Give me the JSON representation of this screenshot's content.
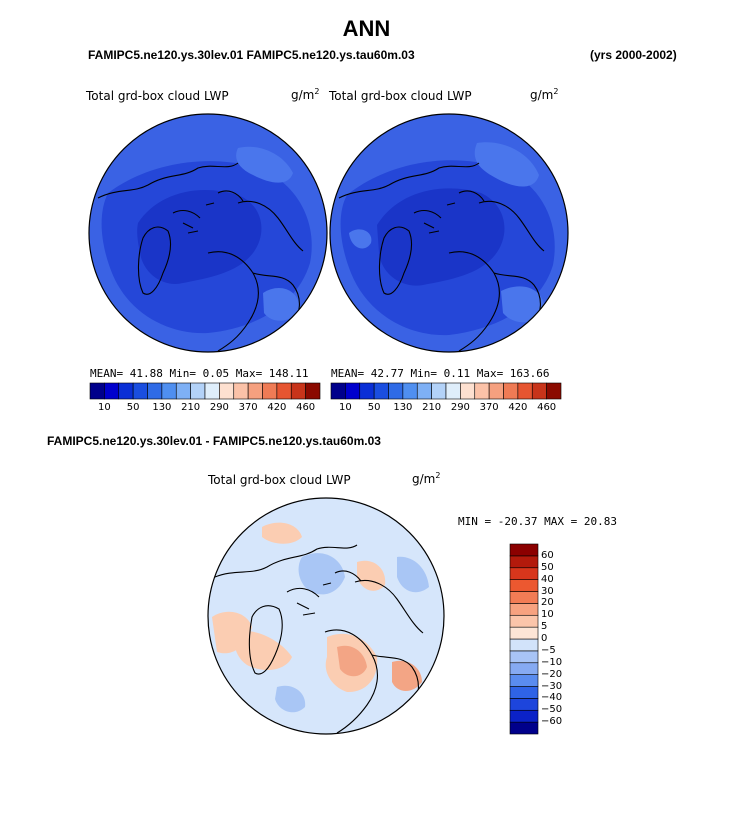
{
  "title": "ANN",
  "header": {
    "case_line": "FAMIPC5.ne120.ys.30lev.01 FAMIPC5.ne120.ys.tau60m.03",
    "years": "(yrs 2000-2002)"
  },
  "panels": [
    {
      "variable": "Total grd-box cloud LWP",
      "units": "g/m",
      "units_exp": "2",
      "stats": "MEAN=  41.88  Min=   0.05  Max= 148.11"
    },
    {
      "variable": "Total grd-box cloud LWP",
      "units": "g/m",
      "units_exp": "2",
      "stats": "MEAN=  42.77  Min=   0.11  Max= 163.66"
    }
  ],
  "diff_panel": {
    "case_label": "FAMIPC5.ne120.ys.30lev.01 - FAMIPC5.ne120.ys.tau60m.03",
    "variable": "Total grd-box cloud LWP",
    "units": "g/m",
    "units_exp": "2",
    "stats": "MIN = -20.37 MAX =  20.83"
  },
  "colorbar_main": {
    "colors": [
      "#00008b",
      "#0000cd",
      "#0a2fd6",
      "#1a4ee0",
      "#2f6be6",
      "#4f8ff0",
      "#7eb0f5",
      "#b3d2f8",
      "#dfeefb",
      "#fde0d0",
      "#fbc2a8",
      "#f5a07f",
      "#ef7b55",
      "#e65531",
      "#c8341a",
      "#8b0a00"
    ],
    "tick_labels": [
      "10",
      "50",
      "130",
      "210",
      "290",
      "370",
      "420",
      "460"
    ]
  },
  "colorbar_diff": {
    "colors": [
      "#00008b",
      "#0b22c7",
      "#1d45dc",
      "#2f63e6",
      "#5a8cef",
      "#86aaf2",
      "#a8c4f6",
      "#d2e3fa",
      "#fde5d6",
      "#fbc5aa",
      "#f7a280",
      "#f27c55",
      "#ec5830",
      "#d8361c",
      "#b31a0c",
      "#8b0000"
    ],
    "tick_labels": [
      "60",
      "50",
      "40",
      "30",
      "20",
      "10",
      "5",
      "0",
      "−5",
      "−10",
      "−20",
      "−30",
      "−40",
      "−50",
      "−60"
    ]
  },
  "map_colors": {
    "field_deep": "#1a35c8",
    "field_mid": "#2547d8",
    "field_light": "#3a62e4",
    "diff_base": "#d6e6fb",
    "diff_warm": "#fbcdb2",
    "diff_warm2": "#f3a585",
    "diff_cool": "#a9c6f5"
  }
}
